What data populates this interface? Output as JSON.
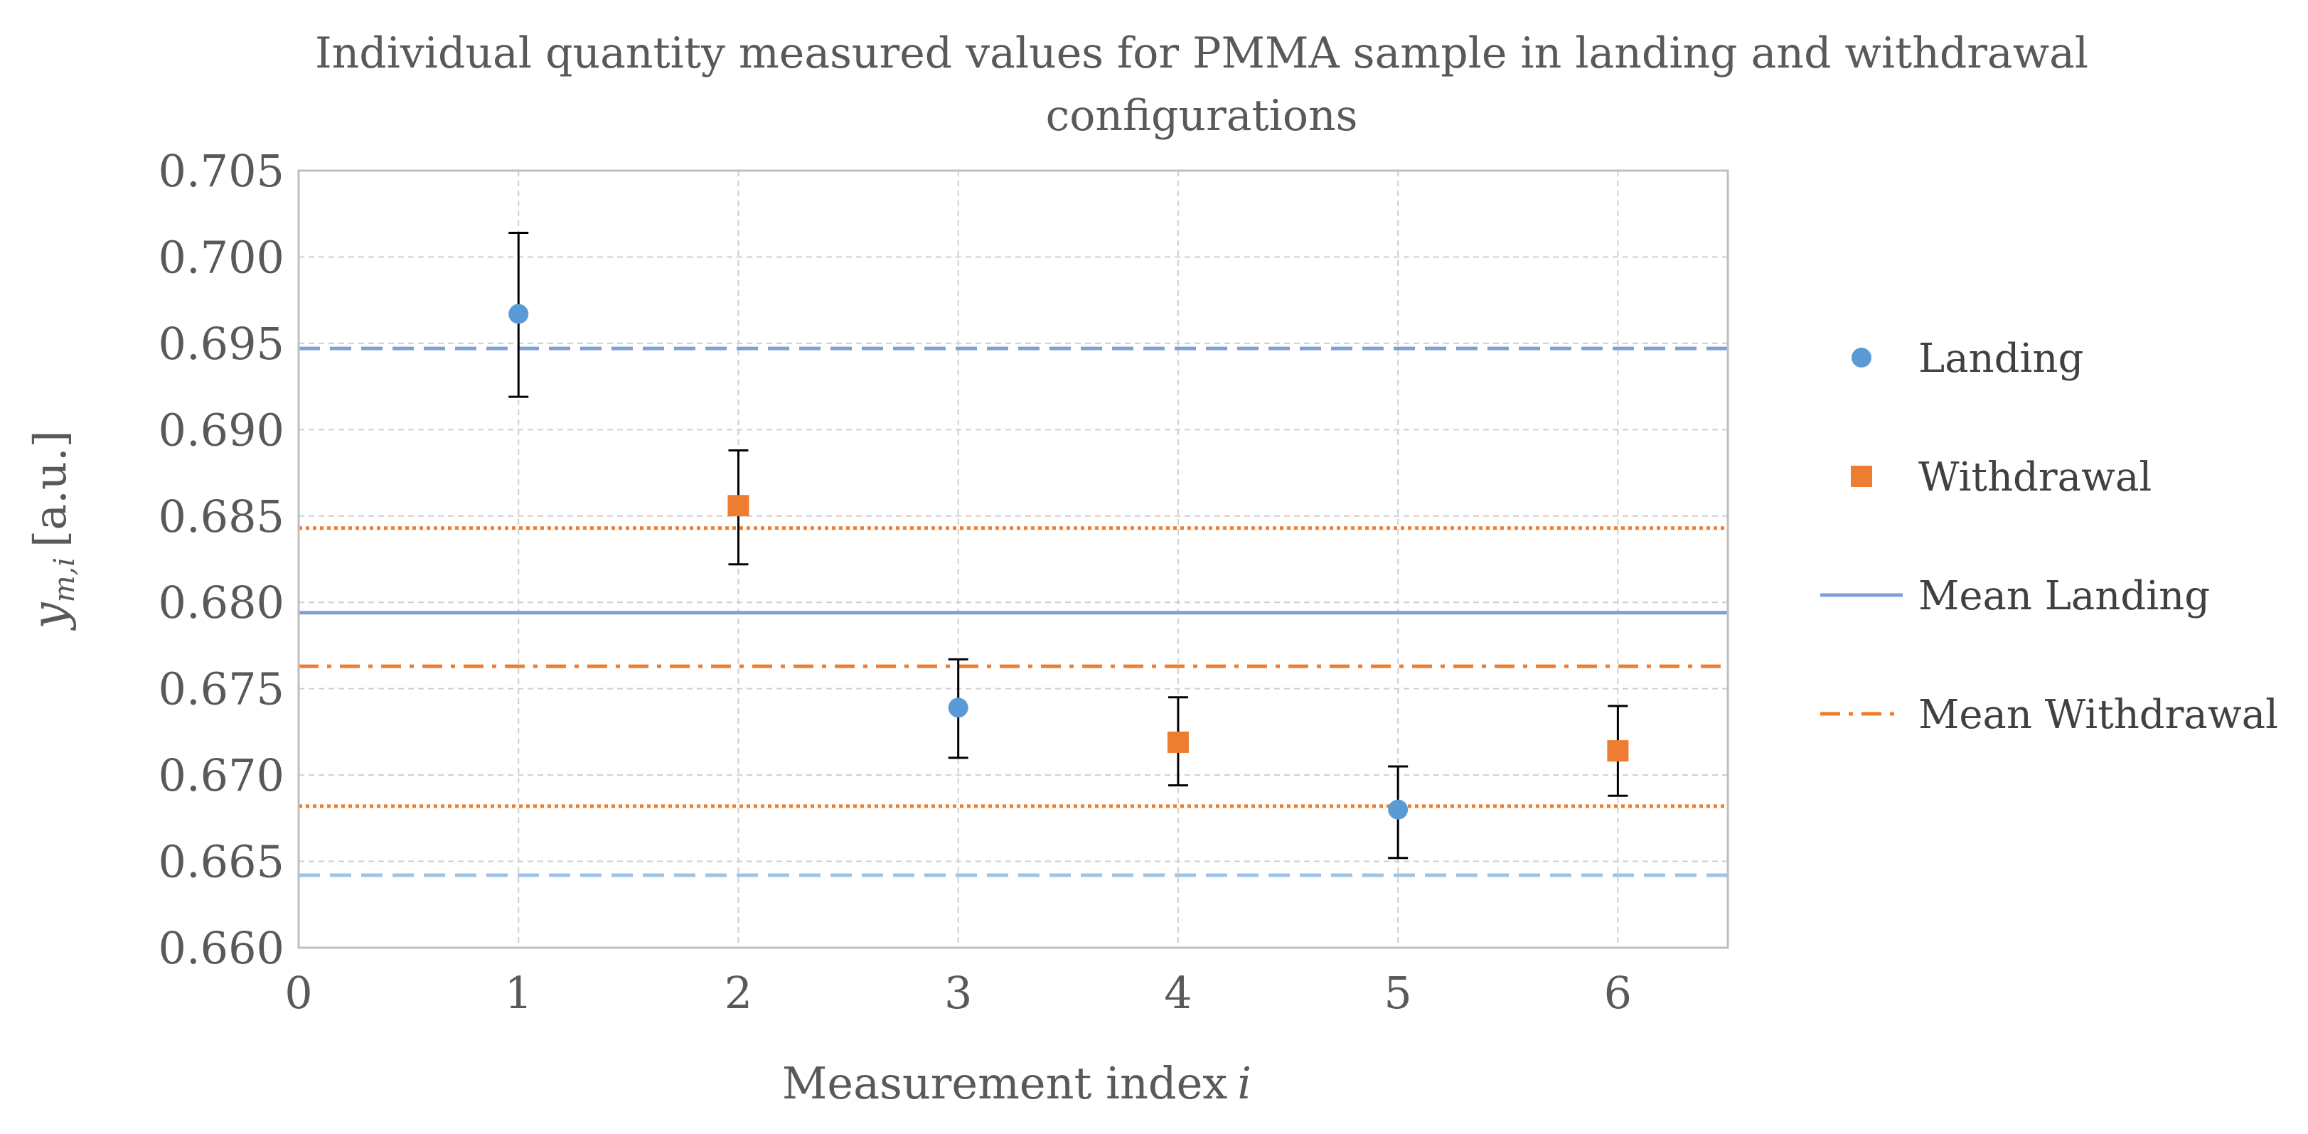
{
  "chart_data": {
    "type": "scatter",
    "title_lines": [
      "Individual quantity measured values for PMMA sample in landing and withdrawal",
      "configurations"
    ],
    "xlabel": "Measurement index",
    "xlabel_var": "i",
    "ylabel_var": "y",
    "ylabel_sub": "m,i",
    "ylabel_unit": "[a.u.]",
    "xlim": [
      0,
      6.5
    ],
    "ylim": [
      0.66,
      0.705
    ],
    "x_ticks": [
      0,
      1,
      2,
      3,
      4,
      5,
      6
    ],
    "y_ticks": [
      0.66,
      0.665,
      0.67,
      0.675,
      0.68,
      0.685,
      0.69,
      0.695,
      0.7,
      0.705
    ],
    "y_tick_labels": [
      "0.660",
      "0.665",
      "0.670",
      "0.675",
      "0.680",
      "0.685",
      "0.690",
      "0.695",
      "0.700",
      "0.705"
    ],
    "grid": true,
    "legend_position": "right",
    "series": [
      {
        "name": "Landing",
        "marker": "circle",
        "color": "#5B9BD5",
        "points": [
          {
            "x": 1,
            "y": 0.6967,
            "err_low": 0.6919,
            "err_high": 0.7014
          },
          {
            "x": 3,
            "y": 0.6739,
            "err_low": 0.671,
            "err_high": 0.6767
          },
          {
            "x": 5,
            "y": 0.668,
            "err_low": 0.6652,
            "err_high": 0.6705
          }
        ]
      },
      {
        "name": "Withdrawal",
        "marker": "square",
        "color": "#ED7D31",
        "points": [
          {
            "x": 2,
            "y": 0.6856,
            "err_low": 0.6822,
            "err_high": 0.6888
          },
          {
            "x": 4,
            "y": 0.6719,
            "err_low": 0.6694,
            "err_high": 0.6745
          },
          {
            "x": 6,
            "y": 0.6714,
            "err_low": 0.6688,
            "err_high": 0.674
          }
        ]
      }
    ],
    "reference_lines": [
      {
        "name": "Mean Landing",
        "y": 0.6794,
        "style": "solid",
        "color": "#7F9FD6",
        "in_legend": true
      },
      {
        "name": "Mean Withdrawal",
        "y": 0.6763,
        "style": "dashdot",
        "color": "#ED7D31",
        "in_legend": true
      },
      {
        "name": "landing-upper-bound",
        "y": 0.6947,
        "style": "dashed",
        "color": "#7F9FD6",
        "in_legend": false
      },
      {
        "name": "landing-lower-bound",
        "y": 0.6642,
        "style": "dashed",
        "color": "#9DC3E6",
        "in_legend": false
      },
      {
        "name": "withdrawal-upper-bound",
        "y": 0.6843,
        "style": "dotted",
        "color": "#ED7D31",
        "in_legend": false
      },
      {
        "name": "withdrawal-lower-bound",
        "y": 0.6682,
        "style": "dotted",
        "color": "#ED7D31",
        "in_legend": false
      }
    ],
    "legend": [
      {
        "label": "Landing",
        "kind": "circle",
        "color": "#5B9BD5"
      },
      {
        "label": "Withdrawal",
        "kind": "square",
        "color": "#ED7D31"
      },
      {
        "label": "Mean Landing",
        "kind": "solid",
        "color": "#7F9FD6"
      },
      {
        "label": "Mean Withdrawal",
        "kind": "dashdot",
        "color": "#ED7D31"
      }
    ]
  }
}
